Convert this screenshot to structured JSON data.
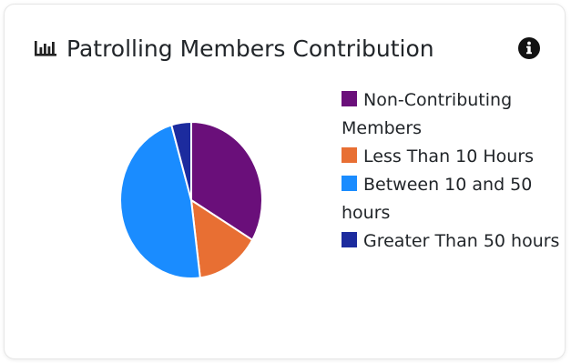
{
  "card": {
    "title": "Patrolling Members Contribution",
    "title_icon": "bar-chart-icon",
    "info_icon": "info-circle-icon"
  },
  "chart_data": {
    "type": "pie",
    "title": "Patrolling Members Contribution",
    "slices": [
      {
        "label": "Non-Contributing Members",
        "value": 33.5,
        "color": "#6a0f7a"
      },
      {
        "label": "Less Than 10 Hours",
        "value": 14.5,
        "color": "#e86f33"
      },
      {
        "label": "Between 10 and 50 hours",
        "value": 47.5,
        "color": "#1a8cff"
      },
      {
        "label": "Greater Than 50 hours",
        "value": 4.5,
        "color": "#1c2b9e"
      }
    ],
    "legend_placement": "right"
  },
  "colors": {
    "title_text": "#212529",
    "icon": "#222222"
  }
}
